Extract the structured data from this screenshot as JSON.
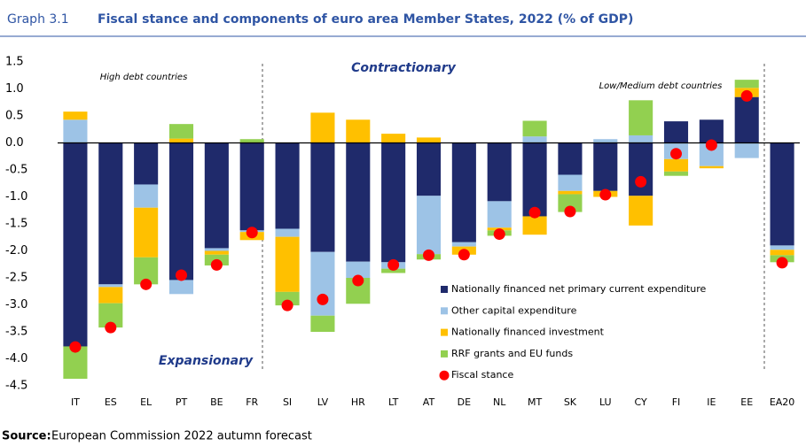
{
  "header": {
    "label": "Graph 3.1",
    "title": "Fiscal stance and components of euro area Member States, 2022 (% of GDP)"
  },
  "chart_data": {
    "type": "bar",
    "stacked": true,
    "categories": [
      "IT",
      "ES",
      "EL",
      "PT",
      "BE",
      "FR",
      "SI",
      "LV",
      "HR",
      "LT",
      "AT",
      "DE",
      "NL",
      "MT",
      "SK",
      "LU",
      "CY",
      "FI",
      "IE",
      "EE",
      "EA20"
    ],
    "series": [
      {
        "name": "Nationally financed net primary current expenditure",
        "color": "#1f2a6b",
        "values": [
          -3.77,
          -2.62,
          -0.77,
          -2.54,
          -1.95,
          -1.62,
          -1.59,
          -2.02,
          -2.2,
          -2.21,
          -0.98,
          -1.84,
          -1.08,
          -1.36,
          -0.59,
          -0.89,
          -0.98,
          0.4,
          0.43,
          0.85,
          -1.9
        ]
      },
      {
        "name": "Other capital expenditure",
        "color": "#9dc3e6",
        "values": [
          0.43,
          -0.05,
          -0.43,
          -0.26,
          -0.05,
          -0.03,
          -0.15,
          -1.18,
          -0.3,
          -0.12,
          -1.08,
          -0.08,
          -0.49,
          0.12,
          -0.3,
          0.07,
          0.14,
          -0.3,
          -0.43,
          -0.28,
          -0.08
        ]
      },
      {
        "name": "Nationally financed investment",
        "color": "#ffc000",
        "values": [
          0.15,
          -0.3,
          -0.92,
          0.08,
          -0.07,
          -0.15,
          -1.02,
          0.56,
          0.43,
          0.17,
          0.1,
          -0.15,
          -0.05,
          -0.34,
          -0.06,
          -0.11,
          -0.55,
          -0.23,
          -0.04,
          0.17,
          -0.1
        ]
      },
      {
        "name": "RRF grants and EU funds",
        "color": "#92d050",
        "values": [
          -0.6,
          -0.45,
          -0.5,
          0.27,
          -0.2,
          0.07,
          -0.25,
          -0.3,
          -0.48,
          -0.08,
          -0.1,
          0,
          -0.1,
          0.29,
          -0.33,
          0,
          0.65,
          -0.08,
          0,
          0.15,
          -0.13
        ]
      },
      {
        "name": "Fiscal stance",
        "color": "#ff0000",
        "type": "scatter",
        "values": [
          -3.78,
          -3.42,
          -2.62,
          -2.45,
          -2.26,
          -1.66,
          -3.01,
          -2.9,
          -2.55,
          -2.26,
          -2.08,
          -2.07,
          -1.69,
          -1.29,
          -1.27,
          -0.96,
          -0.72,
          -0.2,
          -0.04,
          0.87,
          -2.22
        ]
      }
    ],
    "ylim": [
      -4.5,
      1.5
    ],
    "yticks": [
      1.5,
      {
        "value": 1,
        "label": "1.0"
      },
      0.5,
      {
        "value": 0,
        "label": "0.0"
      },
      -0.5,
      {
        "value": -1,
        "label": "-1.0"
      },
      -1.5,
      {
        "value": -2,
        "label": "-2.0"
      },
      -2.5,
      {
        "value": -3,
        "label": "-3.0"
      },
      -3.5,
      {
        "value": -4,
        "label": "-4.0"
      },
      -4.5
    ],
    "annotations": [
      "High debt countries",
      "Contractionary",
      "Low/Medium debt countries",
      "Expansionary"
    ],
    "grid": false,
    "legend": "lower right"
  },
  "footer": {
    "source_label": "Source:",
    "source_text": "European Commission 2022 autumn forecast"
  }
}
